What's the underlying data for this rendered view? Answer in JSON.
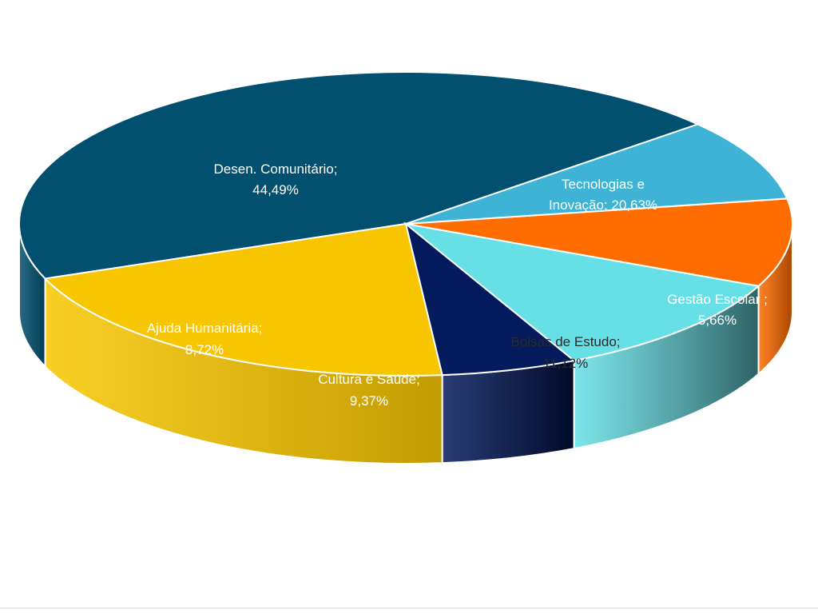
{
  "chart_data": {
    "type": "pie",
    "variant": "3d",
    "slices": [
      {
        "label": "Desen. Comunitário;",
        "value_text": "44,49%",
        "value": 44.49,
        "color": "#02506f",
        "side_color": "#033c55",
        "label_color": "#ffffff"
      },
      {
        "label": "Tecnologias e",
        "label2": "Inovação;",
        "value_text": "20,63%",
        "value": 20.63,
        "color": "#f7c600",
        "side_color": "#c29b00",
        "label_color": "#ffffff"
      },
      {
        "label": "Gestão Escolar ;",
        "value_text": "5,66%",
        "value": 5.66,
        "color": "#031a5c",
        "side_color": "#010a28",
        "label_color": "#ffffff"
      },
      {
        "label": "Bolsas de Estudo;",
        "value_text": "11,12%",
        "value": 11.12,
        "color": "#66e0e6",
        "side_color": "#2f6365",
        "label_color": "#2a2a2a"
      },
      {
        "label": "Cultura e Saúde;",
        "value_text": "9,37%",
        "value": 9.37,
        "color": "#ff6c00",
        "side_color": "#a84600",
        "label_color": "#ffffff"
      },
      {
        "label": "Ajuda Humanitária;",
        "value_text": "8,72%",
        "value": 8.72,
        "color": "#3fb3d6",
        "side_color": "#2a8aa6",
        "label_color": "#ffffff"
      }
    ]
  }
}
